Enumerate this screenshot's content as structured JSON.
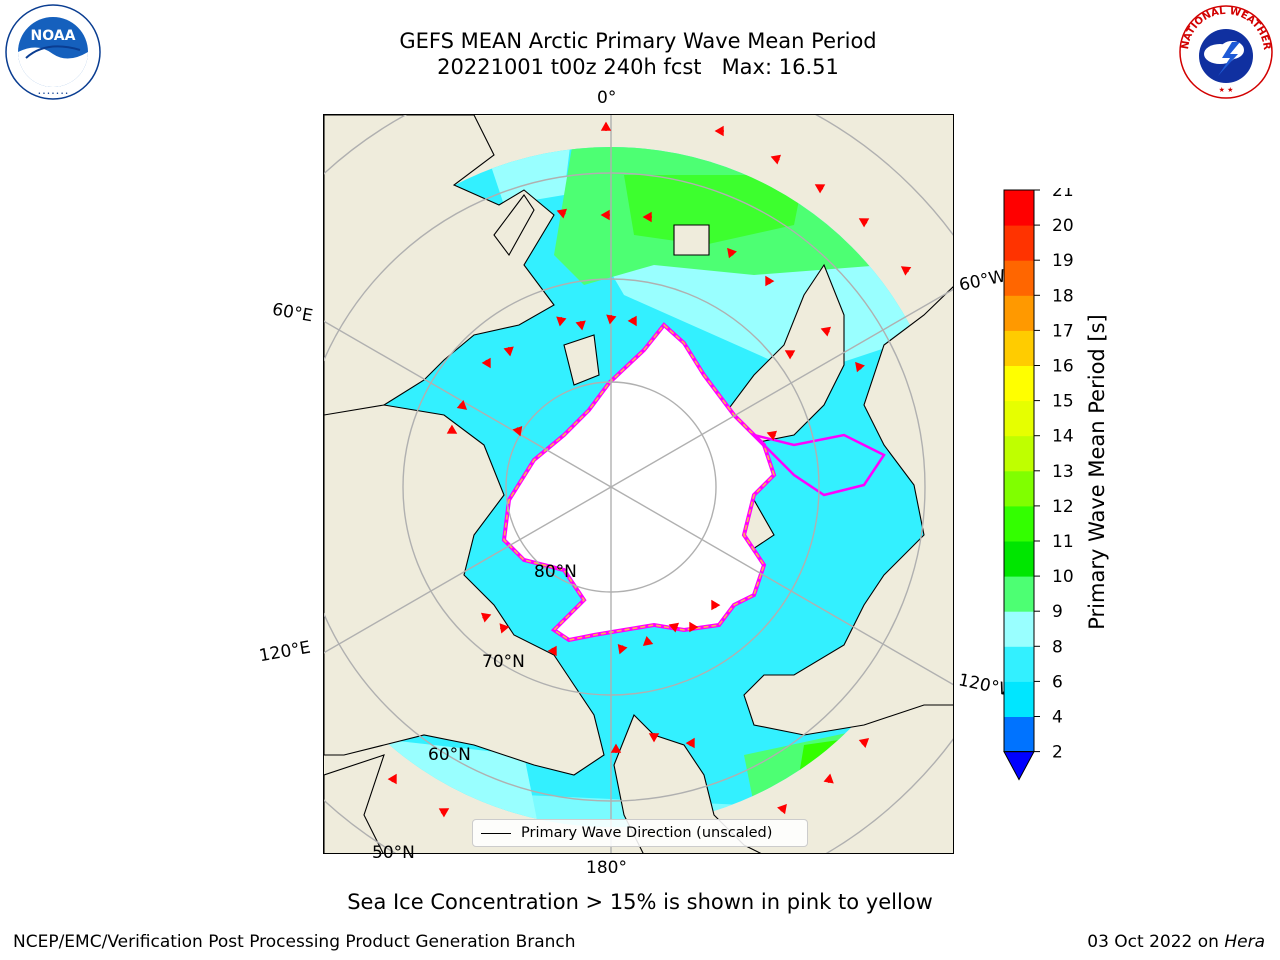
{
  "title": {
    "line1": "GEFS MEAN Arctic Primary Wave Mean Period",
    "line2": "20221001 t00z 240h fcst   Max: 16.51"
  },
  "logos": {
    "left": "NOAA",
    "left_ring": "NATIONAL OCEANIC AND ATMOSPHERIC ADMINISTRATION · U.S. DEPARTMENT OF COMMERCE",
    "right_ring": "NATIONAL WEATHER SERVICE"
  },
  "map": {
    "projection": "north polar stereographic",
    "longitude_labels": {
      "lon0": "0°",
      "lon60w": "60°W",
      "lon60e": "60°E",
      "lon120e": "120°E",
      "lon120w": "120°W",
      "lon180": "180°"
    },
    "latitude_labels": {
      "lat80": "80°N",
      "lat70": "70°N",
      "lat60": "60°N",
      "lat50": "50°N"
    },
    "colors": {
      "land": "#efecdc",
      "ice_edge_inner": "#ff00ff",
      "ice_edge_outer": "#ffb14d",
      "arrow": "#ff0000",
      "graticule": "#b0b0b0"
    },
    "legend": {
      "label": "Primary Wave Direction (unscaled)"
    }
  },
  "colorbar": {
    "label": "Primary Wave Mean Period [s]",
    "ticks": [
      "2",
      "4",
      "6",
      "8",
      "9",
      "10",
      "11",
      "12",
      "13",
      "14",
      "15",
      "16",
      "17",
      "18",
      "19",
      "20",
      "21"
    ],
    "colors": [
      "#0073ff",
      "#00e6ff",
      "#33f0ff",
      "#99ffff",
      "#4dff73",
      "#00e600",
      "#33ff00",
      "#80ff00",
      "#bfff00",
      "#e6ff00",
      "#ffff00",
      "#ffcc00",
      "#ff9900",
      "#ff6600",
      "#ff3300",
      "#ff0000"
    ],
    "extend": "min",
    "extend_color": "#0000ff"
  },
  "caption": "Sea Ice Concentration > 15% is shown in pink to yellow",
  "footer": {
    "left": "NCEP/EMC/Verification Post Processing Product Generation Branch",
    "right_prefix": "03 Oct 2022 on ",
    "right_italic": "Hera"
  }
}
